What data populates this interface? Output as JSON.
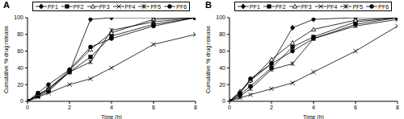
{
  "chart_data": [
    {
      "type": "line",
      "title": "A",
      "x_label": "Time (h)",
      "y_label": "Cumulative % drug release",
      "x": [
        0,
        0.5,
        1,
        2,
        3,
        4,
        6,
        8
      ],
      "xlim": [
        0,
        8
      ],
      "xticks": [
        0,
        2,
        4,
        6,
        8
      ],
      "ylim": [
        0,
        100
      ],
      "yticks": [
        0,
        20,
        40,
        60,
        80,
        100
      ],
      "legend": "top",
      "series": [
        {
          "name": "PF1",
          "color": "#000000",
          "marker": "diamond",
          "values": [
            0,
            8,
            15,
            35,
            98,
            100,
            100,
            100
          ]
        },
        {
          "name": "PF2",
          "color": "#000000",
          "marker": "square",
          "values": [
            0,
            6,
            12,
            35,
            53,
            78,
            92,
            100
          ]
        },
        {
          "name": "PF3",
          "color": "#000000",
          "marker": "triangle",
          "values": [
            0,
            8,
            15,
            37,
            62,
            82,
            98,
            100
          ]
        },
        {
          "name": "PF4",
          "color": "#000000",
          "marker": "x",
          "values": [
            0,
            5,
            10,
            20,
            27,
            40,
            68,
            80
          ]
        },
        {
          "name": "PF5",
          "color": "#000000",
          "marker": "star",
          "values": [
            0,
            7,
            14,
            35,
            47,
            85,
            95,
            100
          ]
        },
        {
          "name": "PF6",
          "color": "#000000",
          "marker": "circle",
          "values": [
            0,
            10,
            20,
            38,
            65,
            75,
            90,
            100
          ]
        }
      ]
    },
    {
      "type": "line",
      "title": "B",
      "x_label": "Time (h)",
      "y_label": "Cumulative % drug release",
      "x": [
        0,
        0.5,
        1,
        2,
        3,
        4,
        6,
        8
      ],
      "xlim": [
        0,
        8
      ],
      "xticks": [
        0,
        2,
        4,
        6,
        8
      ],
      "ylim": [
        0,
        100
      ],
      "yticks": [
        0,
        20,
        40,
        60,
        80,
        100
      ],
      "legend": "top",
      "series": [
        {
          "name": "PF1",
          "color": "#000000",
          "marker": "diamond",
          "values": [
            0,
            10,
            25,
            45,
            88,
            98,
            100,
            100
          ]
        },
        {
          "name": "PF2",
          "color": "#000000",
          "marker": "square",
          "values": [
            0,
            8,
            18,
            40,
            65,
            77,
            95,
            100
          ]
        },
        {
          "name": "PF3",
          "color": "#000000",
          "marker": "triangle",
          "values": [
            0,
            12,
            25,
            50,
            70,
            86,
            97,
            100
          ]
        },
        {
          "name": "PF4",
          "color": "#000000",
          "marker": "x",
          "values": [
            0,
            4,
            8,
            15,
            22,
            35,
            60,
            90
          ]
        },
        {
          "name": "PF5",
          "color": "#000000",
          "marker": "star",
          "values": [
            0,
            6,
            15,
            38,
            45,
            75,
            90,
            98
          ]
        },
        {
          "name": "PF6",
          "color": "#000000",
          "marker": "circle",
          "values": [
            0,
            10,
            27,
            45,
            60,
            75,
            92,
            100
          ]
        }
      ]
    }
  ]
}
